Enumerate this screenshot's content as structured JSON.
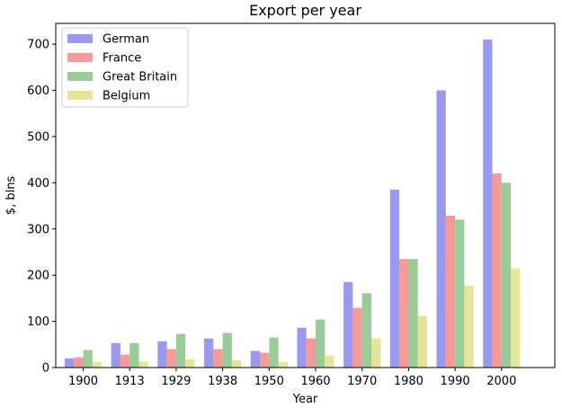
{
  "chart_data": {
    "type": "bar",
    "title": "Export per year",
    "xlabel": "Year",
    "ylabel": "$, blns",
    "categories": [
      "1900",
      "1913",
      "1929",
      "1938",
      "1950",
      "1960",
      "1970",
      "1980",
      "1990",
      "2000"
    ],
    "ylim": [
      0,
      745
    ],
    "yticks": [
      0,
      100,
      200,
      300,
      400,
      500,
      600,
      700
    ],
    "grid": false,
    "legend_position": "top-left",
    "series": [
      {
        "name": "German",
        "color": "#9999f0",
        "values": [
          20,
          53,
          57,
          63,
          36,
          86,
          185,
          385,
          600,
          710
        ]
      },
      {
        "name": "France",
        "color": "#f59999",
        "values": [
          22,
          28,
          40,
          40,
          32,
          63,
          129,
          235,
          329,
          420
        ]
      },
      {
        "name": "Great Britain",
        "color": "#99cc99",
        "values": [
          38,
          53,
          73,
          75,
          65,
          104,
          161,
          235,
          320,
          400
        ]
      },
      {
        "name": "Belgium",
        "color": "#e5e599",
        "values": [
          12,
          13,
          18,
          16,
          12,
          26,
          63,
          112,
          177,
          215
        ]
      }
    ]
  }
}
